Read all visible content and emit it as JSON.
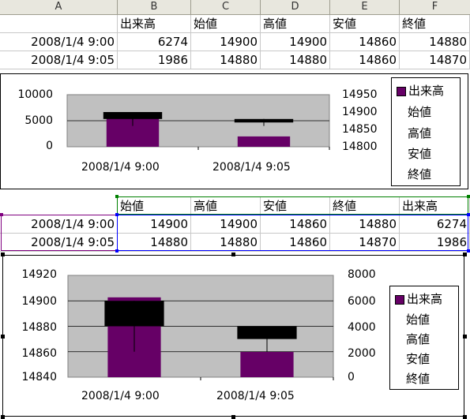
{
  "column_headers": [
    "A",
    "B",
    "C",
    "D",
    "E",
    "F"
  ],
  "sheet1": {
    "header_row": [
      "",
      "出来高",
      "始値",
      "高値",
      "安値",
      "終値"
    ],
    "rows": [
      [
        "2008/1/4 9:00",
        "6274",
        "14900",
        "14900",
        "14860",
        "14880"
      ],
      [
        "2008/1/4 9:05",
        "1986",
        "14880",
        "14880",
        "14860",
        "14870"
      ]
    ]
  },
  "chart1": {
    "y1_ticks": [
      "10000",
      "5000",
      "0"
    ],
    "y2_ticks": [
      "14950",
      "14900",
      "14850",
      "14800"
    ],
    "x_labels": [
      "2008/1/4 9:00",
      "2008/1/4 9:05"
    ],
    "legend": [
      "出来高",
      "始値",
      "高値",
      "安値",
      "終値"
    ]
  },
  "sheet2": {
    "header_row": [
      "始値",
      "高値",
      "安値",
      "終値",
      "出来高"
    ],
    "rows": [
      [
        "2008/1/4 9:00",
        "14900",
        "14900",
        "14860",
        "14880",
        "6274"
      ],
      [
        "2008/1/4 9:05",
        "14880",
        "14880",
        "14860",
        "14870",
        "1986"
      ]
    ]
  },
  "chart2": {
    "y1_ticks": [
      "14920",
      "14900",
      "14880",
      "14860",
      "14840"
    ],
    "y2_ticks": [
      "8000",
      "6000",
      "4000",
      "2000",
      "0"
    ],
    "x_labels": [
      "2008/1/4 9:00",
      "2008/1/4 9:05"
    ],
    "legend": [
      "出来高",
      "始値",
      "高値",
      "安値",
      "終値"
    ]
  },
  "chart_data": [
    {
      "type": "bar",
      "categories": [
        "2008/1/4 9:00",
        "2008/1/4 9:05"
      ],
      "series": [
        {
          "name": "出来高",
          "values": [
            6274,
            1986
          ],
          "axis": "primary"
        },
        {
          "name": "始値",
          "values": [
            14900,
            14880
          ],
          "axis": "secondary"
        },
        {
          "name": "高値",
          "values": [
            14900,
            14880
          ],
          "axis": "secondary"
        },
        {
          "name": "安値",
          "values": [
            14860,
            14860
          ],
          "axis": "secondary"
        },
        {
          "name": "終値",
          "values": [
            14880,
            14870
          ],
          "axis": "secondary"
        }
      ],
      "ylim": [
        0,
        10000
      ],
      "y2lim": [
        14800,
        14950
      ],
      "colors": {
        "volume": "#660066",
        "plot_bg": "#c0c0c0"
      }
    },
    {
      "type": "bar",
      "categories": [
        "2008/1/4 9:00",
        "2008/1/4 9:05"
      ],
      "series": [
        {
          "name": "出来高",
          "values": [
            6274,
            1986
          ],
          "axis": "secondary"
        },
        {
          "name": "始値",
          "values": [
            14900,
            14880
          ],
          "axis": "primary"
        },
        {
          "name": "高値",
          "values": [
            14900,
            14880
          ],
          "axis": "primary"
        },
        {
          "name": "安値",
          "values": [
            14860,
            14860
          ],
          "axis": "primary"
        },
        {
          "name": "終値",
          "values": [
            14880,
            14870
          ],
          "axis": "primary"
        }
      ],
      "ylim": [
        14840,
        14920
      ],
      "y2lim": [
        0,
        8000
      ],
      "colors": {
        "volume": "#660066",
        "plot_bg": "#c0c0c0"
      }
    }
  ]
}
